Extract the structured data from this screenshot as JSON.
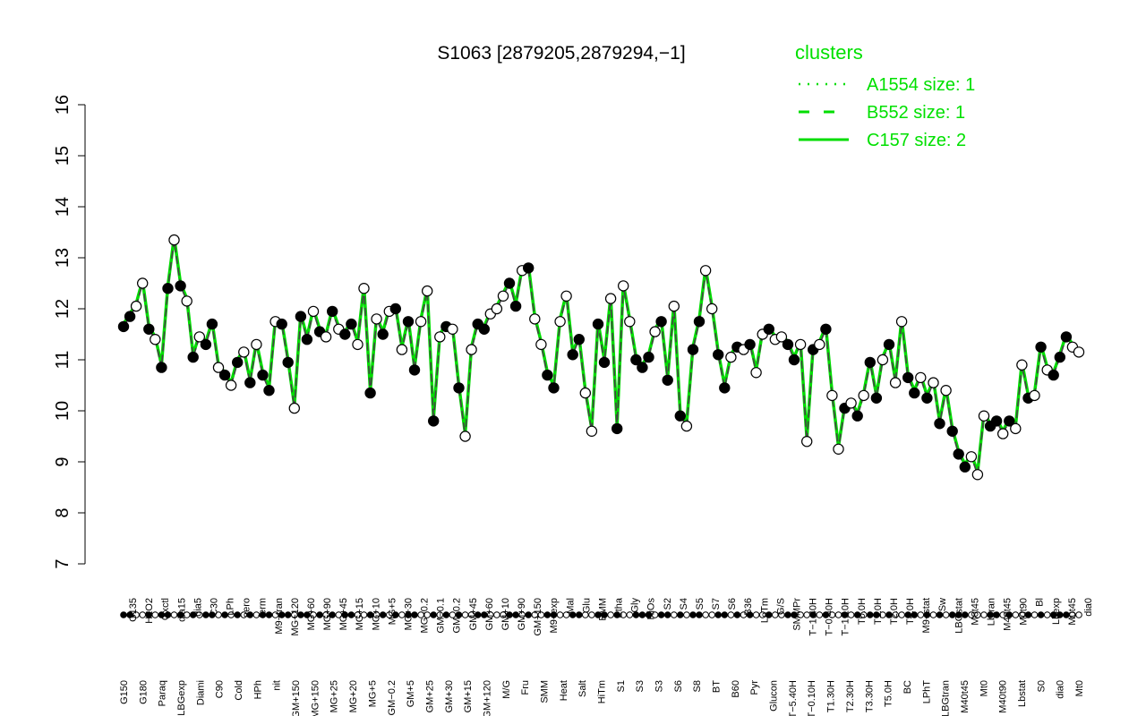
{
  "chart_data": {
    "type": "line",
    "title": "S1063 [2879205,2879294,−1]",
    "xlabel": "",
    "ylabel": "",
    "ylim": [
      7,
      16
    ],
    "yticks": [
      7,
      8,
      9,
      10,
      11,
      12,
      13,
      14,
      15,
      16
    ],
    "grid": false,
    "legend_position": "top-right",
    "legend": {
      "title": "clusters",
      "entries": [
        {
          "label": "A1554 size: 1",
          "style": "dotted"
        },
        {
          "label": "B552 size: 1",
          "style": "dashed"
        },
        {
          "label": "C157 size: 2",
          "style": "solid"
        }
      ]
    },
    "colors": {
      "line": "#00dd00",
      "dark_line": "#444444",
      "filled_point": "#000000",
      "open_point": "#ffffff"
    },
    "x_labels_top": [
      "G135",
      "H2O2",
      "Oxctl",
      "dia15",
      "dia5",
      "C30",
      "LPh",
      "aero",
      "ferm",
      "M9−tran",
      "MG+120",
      "MG+60",
      "MG+90",
      "MG+45",
      "MG+15",
      "MG+10",
      "MG+5",
      "MG+30",
      "MG−0.2",
      "GM−0.1",
      "GM−0.2",
      "GM+45",
      "GM+60",
      "GM+10",
      "GM+90",
      "GM+150",
      "M9−exp",
      "Mal",
      "Glu",
      "BMM",
      "Etha",
      "Gly",
      "HiOs",
      "S2",
      "S4",
      "S5",
      "S7",
      "S6",
      "B36",
      "LoTm",
      "G/S",
      "SMMPr",
      "T−1.40H",
      "T−0.40H",
      "T−1.10H",
      "T0.0H",
      "T1.0H",
      "T2.0H",
      "T4.0H",
      "M9−stat",
      "Sw",
      "LBGstat",
      "M0t45",
      "Lbtran",
      "M40t45",
      "M0t90",
      "Bl",
      "Lbexp",
      "M0t45",
      "dia0"
    ],
    "x_labels_bottom": [
      "G150",
      "G180",
      "Paraq",
      "LBGexp",
      "Diami",
      "C90",
      "Cold",
      "HPh",
      "nit",
      "GM+150",
      "MG+150",
      "MG+25",
      "MG+20",
      "MG+5",
      "GM−0.2",
      "GM+5",
      "GM+25",
      "GM+30",
      "GM+15",
      "GM+120",
      "M/G",
      "Fru",
      "SMM",
      "Heat",
      "Salt",
      "HiTm",
      "S1",
      "S3",
      "S3",
      "S6",
      "S8",
      "BT",
      "B60",
      "Pyr",
      "Glucon",
      "T−5.40H",
      "T−0.10H",
      "T1.30H",
      "T2.30H",
      "T3.30H",
      "T5.0H",
      "BC",
      "LPhT",
      "LBGtran",
      "M40t45",
      "Mt0",
      "M40t90",
      "Lbstat",
      "S0",
      "dia0",
      "Mt0"
    ],
    "series": [
      {
        "values": [
          11.65,
          11.85,
          12.05,
          12.5,
          11.6,
          11.4,
          10.85,
          12.4,
          13.35,
          12.45,
          12.15,
          11.05,
          11.45,
          11.3,
          11.7,
          10.85,
          10.7,
          10.5,
          10.95,
          11.15,
          10.55,
          11.3,
          10.7,
          10.4,
          11.75,
          11.7,
          10.95,
          10.05,
          11.85,
          11.4,
          11.95,
          11.55,
          11.45,
          11.95,
          11.6,
          11.5,
          11.7,
          11.3,
          12.4,
          10.35,
          11.8,
          11.5,
          11.95,
          12.0,
          11.2,
          11.75,
          10.8,
          11.75,
          12.35,
          9.8,
          11.45,
          11.65,
          11.6,
          10.45,
          9.5,
          11.2,
          11.7,
          11.6,
          11.9,
          12.0,
          12.25,
          12.5,
          12.05,
          12.75,
          12.8,
          11.8,
          11.3,
          10.7,
          10.45,
          11.75,
          12.25,
          11.1,
          11.4,
          10.35,
          9.6,
          11.7,
          10.95,
          12.2,
          9.65,
          12.45,
          11.75,
          11.0,
          10.85,
          11.05,
          11.55,
          11.75,
          10.6,
          12.05,
          9.9,
          9.7,
          11.2,
          11.75,
          12.75,
          12.0,
          11.1,
          10.45,
          11.05,
          11.25,
          11.2,
          11.3,
          10.75,
          11.5,
          11.6,
          11.4,
          11.45,
          11.3,
          11.0,
          11.3,
          9.4,
          11.2,
          11.3,
          11.6,
          10.3,
          9.25,
          10.05,
          10.15,
          9.9,
          10.3,
          10.95,
          10.25,
          11.0,
          11.3,
          10.55,
          11.75,
          10.65,
          10.35,
          10.65,
          10.25,
          10.55,
          9.75,
          10.4,
          9.6,
          9.15,
          8.9,
          9.1,
          8.75,
          9.9,
          9.7,
          9.8,
          9.55,
          9.8,
          9.65,
          10.9,
          10.25,
          10.3,
          11.25,
          10.8,
          10.7,
          11.05,
          11.45,
          11.25,
          11.15
        ],
        "filled": [
          1,
          1,
          0,
          0,
          1,
          0,
          1,
          1,
          0,
          1,
          0,
          1,
          0,
          1,
          1,
          0,
          1,
          0,
          1,
          0,
          1,
          0,
          1,
          1,
          0,
          1,
          1,
          0,
          1,
          1,
          0,
          1,
          0,
          1,
          0,
          1,
          1,
          0,
          0,
          1,
          0,
          1,
          0,
          1,
          0,
          1,
          1,
          0,
          0,
          1,
          0,
          1,
          0,
          1,
          0,
          0,
          1,
          1,
          0,
          0,
          0,
          1,
          1,
          0,
          1,
          0,
          0,
          1,
          1,
          0,
          0,
          1,
          1,
          0,
          0,
          1,
          1,
          0,
          1,
          0,
          0,
          1,
          1,
          1,
          0,
          1,
          1,
          0,
          1,
          0,
          1,
          1,
          0,
          0,
          1,
          1,
          0,
          1,
          0,
          1,
          0,
          0,
          1,
          0,
          0,
          1,
          1,
          0,
          0,
          1,
          0,
          1,
          0,
          0,
          1,
          0,
          1,
          0,
          1,
          1,
          0,
          1,
          0,
          0,
          1,
          1,
          0,
          1,
          0,
          1,
          0,
          1,
          1,
          1,
          0,
          0,
          0,
          1,
          1,
          0,
          1,
          0,
          0,
          1,
          0,
          1,
          0,
          1,
          1,
          1
        ]
      }
    ]
  }
}
